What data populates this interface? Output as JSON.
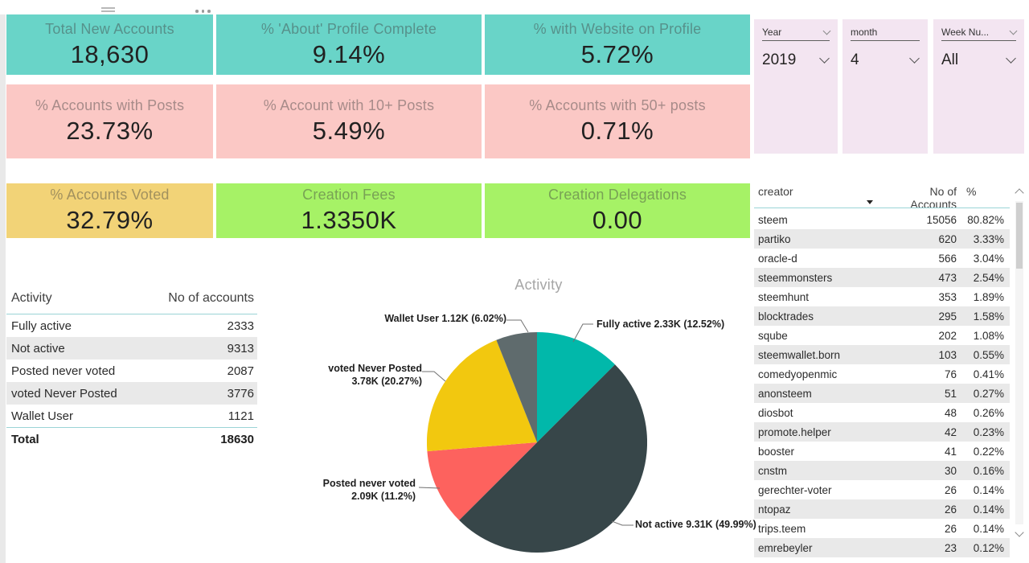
{
  "kpi_rows": [
    {
      "cards": [
        {
          "title": "Total New Accounts",
          "value": "18,630",
          "bg": "#69d4c8"
        },
        {
          "title": "% 'About' Profile Complete",
          "value": "9.14%",
          "bg": "#69d4c8"
        },
        {
          "title": "% with Website on Profile",
          "value": "5.72%",
          "bg": "#69d4c8"
        }
      ]
    },
    {
      "cards": [
        {
          "title": "% Accounts with Posts",
          "value": "23.73%",
          "bg": "#fbc8c5"
        },
        {
          "title": "% Account with 10+ Posts",
          "value": "5.49%",
          "bg": "#fbc8c5"
        },
        {
          "title": "% Accounts with 50+ posts",
          "value": "0.71%",
          "bg": "#fbc8c5"
        }
      ]
    },
    {
      "cards": [
        {
          "title": "% Accounts Voted",
          "value": "32.79%",
          "bg": "#f2d377"
        },
        {
          "title": "Creation Fees",
          "value": "1.3350K",
          "bg": "#a6f266"
        },
        {
          "title": "Creation Delegations",
          "value": "0.00",
          "bg": "#a6f266"
        }
      ]
    }
  ],
  "slicers": [
    {
      "label": "Year",
      "value": "2019"
    },
    {
      "label": "month",
      "value": "4"
    },
    {
      "label": "Week Nu...",
      "value": "All"
    }
  ],
  "activity_table": {
    "headers": [
      "Activity",
      "No of accounts"
    ],
    "rows": [
      [
        "Fully active",
        "2333"
      ],
      [
        "Not active",
        "9313"
      ],
      [
        "Posted never voted",
        "2087"
      ],
      [
        "voted Never Posted",
        "3776"
      ],
      [
        "Wallet User",
        "1121"
      ]
    ],
    "total_label": "Total",
    "total_value": "18630"
  },
  "creator_table": {
    "headers": [
      "creator",
      "No of Accounts",
      "%"
    ],
    "sorted_by": "No of Accounts",
    "rows": [
      [
        "steem",
        "15056",
        "80.82%"
      ],
      [
        "partiko",
        "620",
        "3.33%"
      ],
      [
        "oracle-d",
        "566",
        "3.04%"
      ],
      [
        "steemmonsters",
        "473",
        "2.54%"
      ],
      [
        "steemhunt",
        "353",
        "1.89%"
      ],
      [
        "blocktrades",
        "295",
        "1.58%"
      ],
      [
        "sqube",
        "202",
        "1.08%"
      ],
      [
        "steemwallet.born",
        "103",
        "0.55%"
      ],
      [
        "comedyopenmic",
        "76",
        "0.41%"
      ],
      [
        "anonsteem",
        "51",
        "0.27%"
      ],
      [
        "diosbot",
        "48",
        "0.26%"
      ],
      [
        "promote.helper",
        "42",
        "0.23%"
      ],
      [
        "booster",
        "41",
        "0.22%"
      ],
      [
        "cnstm",
        "30",
        "0.16%"
      ],
      [
        "gerechter-voter",
        "26",
        "0.14%"
      ],
      [
        "ntopaz",
        "26",
        "0.14%"
      ],
      [
        "trips.teem",
        "26",
        "0.14%"
      ],
      [
        "emrebeyler",
        "23",
        "0.12%"
      ]
    ]
  },
  "chart_data": {
    "type": "pie",
    "title": "Activity",
    "legend": "none",
    "slices": [
      {
        "label": "Fully active",
        "value": 2333,
        "pct": 12.52,
        "color": "#01b8aa",
        "callout": "Fully active 2.33K (12.52%)"
      },
      {
        "label": "Not active",
        "value": 9313,
        "pct": 49.99,
        "color": "#374649",
        "callout": "Not active 9.31K (49.99%)"
      },
      {
        "label": "Posted never voted",
        "value": 2087,
        "pct": 11.2,
        "color": "#fd625e",
        "callout": "Posted never voted\n2.09K (11.2%)"
      },
      {
        "label": "voted Never Posted",
        "value": 3776,
        "pct": 20.27,
        "color": "#f2c80f",
        "callout": "voted Never Posted\n3.78K (20.27%)"
      },
      {
        "label": "Wallet User",
        "value": 1121,
        "pct": 6.02,
        "color": "#5f6b6d",
        "callout": "Wallet User 1.12K (6.02%)"
      }
    ]
  }
}
